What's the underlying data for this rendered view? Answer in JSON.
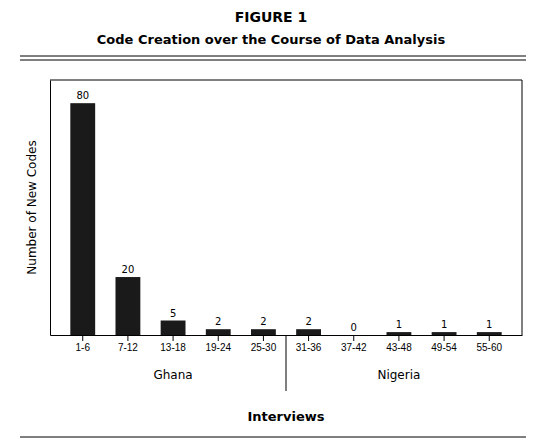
{
  "chart_data": {
    "type": "bar",
    "title": "FIGURE 1",
    "subtitle": "Code Creation over the Course of Data Analysis",
    "categories": [
      "1-6",
      "7-12",
      "13-18",
      "19-24",
      "25-30",
      "31-36",
      "37-42",
      "43-48",
      "49-54",
      "55-60"
    ],
    "values": [
      80,
      20,
      5,
      2,
      2,
      2,
      0,
      1,
      1,
      1
    ],
    "color": "#1a1a1a",
    "ylabel": "Number of New Codes",
    "xlabel": "Interviews",
    "ylim": [
      0,
      88
    ],
    "yticks": [],
    "grid": false,
    "data_labels": true,
    "tick_labels": "x",
    "annotations": [
      {
        "text": "Ghana",
        "categories": [
          "1-6",
          "7-12",
          "13-18",
          "19-24",
          "25-30"
        ]
      },
      {
        "text": "Nigeria",
        "categories": [
          "31-36",
          "37-42",
          "43-48",
          "49-54",
          "55-60"
        ]
      }
    ]
  }
}
